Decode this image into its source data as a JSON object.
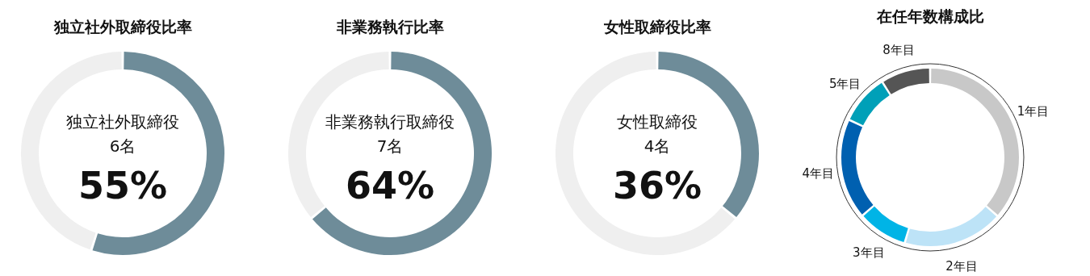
{
  "chart_data": [
    {
      "type": "donut",
      "title": "独立社外取締役比率",
      "categories": [
        null,
        null
      ],
      "values": [
        55,
        45
      ],
      "colors": [
        "#6e8c99",
        "#efefef"
      ],
      "annotations": [
        "独立社外取締役",
        "6名",
        "55%"
      ]
    },
    {
      "type": "donut",
      "title": "非業務執行比率",
      "categories": [
        null,
        null
      ],
      "values": [
        64,
        36
      ],
      "colors": [
        "#6e8c99",
        "#efefef"
      ],
      "annotations": [
        "非業務執行取締役",
        "7名",
        "64%"
      ]
    },
    {
      "type": "donut",
      "title": "女性取締役比率",
      "categories": [
        null,
        null
      ],
      "values": [
        36,
        64
      ],
      "colors": [
        "#6e8c99",
        "#efefef"
      ],
      "annotations": [
        "女性取締役",
        "4名",
        "36%"
      ]
    },
    {
      "type": "donut",
      "title": "在任年数構成比",
      "categories": [
        "1年目",
        "2年目",
        "3年目",
        "4年目",
        "5年目",
        "8年目"
      ],
      "values": [
        36.4,
        18.2,
        9.1,
        18.2,
        9.1,
        9.0
      ],
      "colors": [
        "#c8c8c8",
        "#bde3f7",
        "#00b4e6",
        "#0060b0",
        "#00a0b8",
        "#555555"
      ]
    }
  ]
}
